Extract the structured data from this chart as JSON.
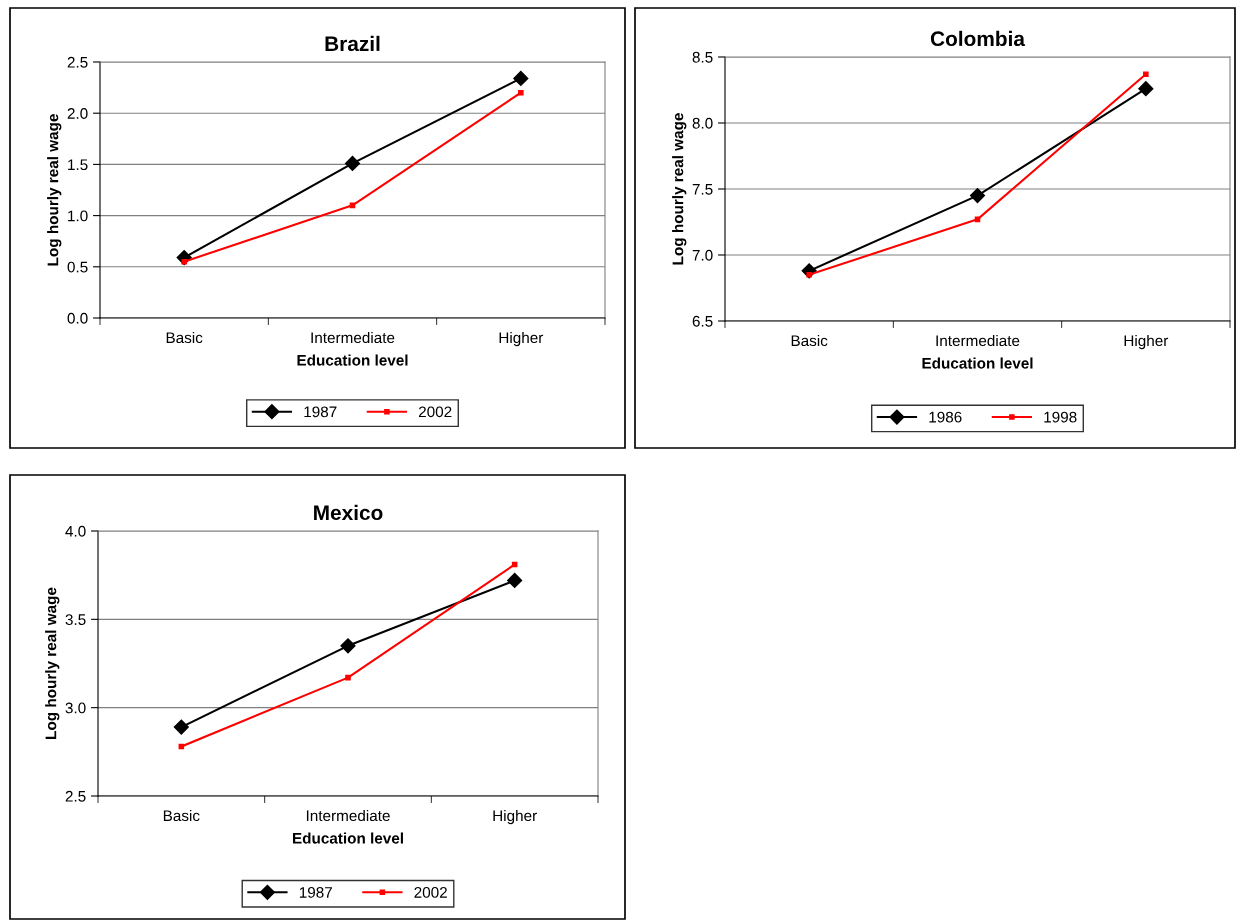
{
  "chart_data": [
    {
      "type": "line",
      "title": "Brazil",
      "xlabel": "Education level",
      "ylabel": "Log hourly real wage",
      "categories": [
        "Basic",
        "Intermediate",
        "Higher"
      ],
      "ylim": [
        0,
        2.5
      ],
      "yticks": [
        {
          "value": 0,
          "label": "0.0"
        },
        {
          "value": 0.5,
          "label": "0.5"
        },
        {
          "value": 1,
          "label": "1.0"
        },
        {
          "value": 1.5,
          "label": "1.5"
        },
        {
          "value": 2,
          "label": "2.0"
        },
        {
          "value": 2.5,
          "label": "2.5"
        }
      ],
      "grid": "y",
      "legend": "bottom",
      "series": [
        {
          "name": "1987",
          "color": "#000000",
          "marker": "diamond",
          "values": [
            0.59,
            1.51,
            2.34
          ]
        },
        {
          "name": "2002",
          "color": "#ff0000",
          "marker": "square",
          "values": [
            0.55,
            1.1,
            2.2
          ]
        }
      ]
    },
    {
      "type": "line",
      "title": "Colombia",
      "xlabel": "Education level",
      "ylabel": "Log hourly real wage",
      "categories": [
        "Basic",
        "Intermediate",
        "Higher"
      ],
      "ylim": [
        6.5,
        8.5
      ],
      "yticks": [
        {
          "value": 6.5,
          "label": "6.5"
        },
        {
          "value": 7,
          "label": "7.0"
        },
        {
          "value": 7.5,
          "label": "7.5"
        },
        {
          "value": 8,
          "label": "8.0"
        },
        {
          "value": 8.5,
          "label": "8.5"
        }
      ],
      "grid": "y",
      "legend": "bottom",
      "series": [
        {
          "name": "1986",
          "color": "#000000",
          "marker": "diamond",
          "values": [
            6.88,
            7.45,
            8.26
          ]
        },
        {
          "name": "1998",
          "color": "#ff0000",
          "marker": "square",
          "values": [
            6.85,
            7.27,
            8.37
          ]
        }
      ]
    },
    {
      "type": "line",
      "title": "Mexico",
      "xlabel": "Education level",
      "ylabel": "Log hourly real wage",
      "categories": [
        "Basic",
        "Intermediate",
        "Higher"
      ],
      "ylim": [
        2.5,
        4.0
      ],
      "yticks": [
        {
          "value": 2.5,
          "label": "2.5"
        },
        {
          "value": 3,
          "label": "3.0"
        },
        {
          "value": 3.5,
          "label": "3.5"
        },
        {
          "value": 4,
          "label": "4.0"
        }
      ],
      "grid": "y",
      "legend": "bottom",
      "series": [
        {
          "name": "1987",
          "color": "#000000",
          "marker": "diamond",
          "values": [
            2.89,
            3.35,
            3.72
          ]
        },
        {
          "name": "2002",
          "color": "#ff0000",
          "marker": "square",
          "values": [
            2.78,
            3.17,
            3.81
          ]
        }
      ]
    }
  ]
}
